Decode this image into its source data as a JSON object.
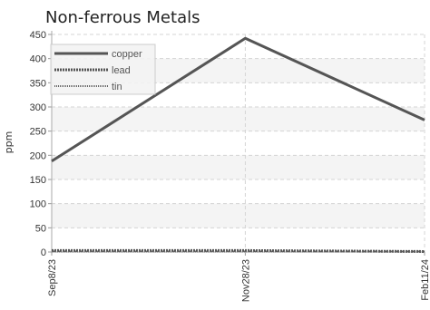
{
  "chart_data": {
    "type": "line",
    "title": "Non-ferrous Metals",
    "ylabel": "ppm",
    "xlabel": "",
    "x": [
      "Sep8/23",
      "Nov28/23",
      "Feb11/24"
    ],
    "x_days": [
      0,
      81,
      156
    ],
    "ylim": [
      0,
      450
    ],
    "yticks": [
      0,
      50,
      100,
      150,
      200,
      250,
      300,
      350,
      400,
      450
    ],
    "grid": true,
    "legend_position": "top-left",
    "series": [
      {
        "name": "copper",
        "values": [
          188,
          442,
          273
        ],
        "color": "#555555",
        "style": "solid"
      },
      {
        "name": "lead",
        "values": [
          3,
          3,
          1
        ],
        "color": "#555555",
        "style": "dotted"
      },
      {
        "name": "tin",
        "values": [
          1,
          1,
          1
        ],
        "color": "#666666",
        "style": "dotted-thin"
      }
    ]
  }
}
